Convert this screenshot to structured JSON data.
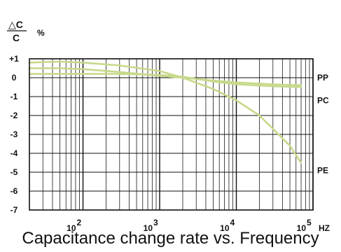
{
  "chart_data": {
    "type": "line",
    "caption": "Capacitance change rate vs. Frequency",
    "ylabel": {
      "numerator": "△C",
      "denominator": "C",
      "unit": "%"
    },
    "xlabel_unit": "HZ",
    "x_scale": "log",
    "xlim": [
      20,
      100000
    ],
    "ylim": [
      -7,
      1
    ],
    "y_ticks": [
      "+1",
      "0",
      "-1",
      "-2",
      "-3",
      "-4",
      "-5",
      "-6",
      "-7"
    ],
    "y_tick_values": [
      1,
      0,
      -1,
      -2,
      -3,
      -4,
      -5,
      -6,
      -7
    ],
    "x_ticks": [
      {
        "base": "10",
        "exp": "2",
        "value": 100
      },
      {
        "base": "10",
        "exp": "3",
        "value": 1000
      },
      {
        "base": "10",
        "exp": "4",
        "value": 10000
      },
      {
        "base": "10",
        "exp": "5",
        "value": 100000
      }
    ],
    "grid": true,
    "line_color": "#c7d98a",
    "series": [
      {
        "name": "PP",
        "x": [
          20,
          50,
          100,
          300,
          1000,
          2000,
          5000,
          10000,
          30000,
          70000
        ],
        "y": [
          0.5,
          0.5,
          0.45,
          0.3,
          0.1,
          0.0,
          -0.15,
          -0.25,
          -0.35,
          -0.4
        ]
      },
      {
        "name": "PC",
        "x": [
          20,
          50,
          100,
          300,
          1000,
          2000,
          5000,
          10000,
          30000,
          70000
        ],
        "y": [
          0.2,
          0.2,
          0.2,
          0.2,
          0.15,
          0.05,
          -0.2,
          -0.35,
          -0.45,
          -0.5
        ]
      },
      {
        "name": "PE",
        "x": [
          20,
          50,
          100,
          300,
          1000,
          2000,
          5000,
          10000,
          20000,
          30000,
          50000,
          70000
        ],
        "y": [
          0.8,
          0.85,
          0.8,
          0.65,
          0.35,
          0.0,
          -0.6,
          -1.2,
          -2.0,
          -2.7,
          -3.6,
          -4.5
        ]
      }
    ]
  }
}
